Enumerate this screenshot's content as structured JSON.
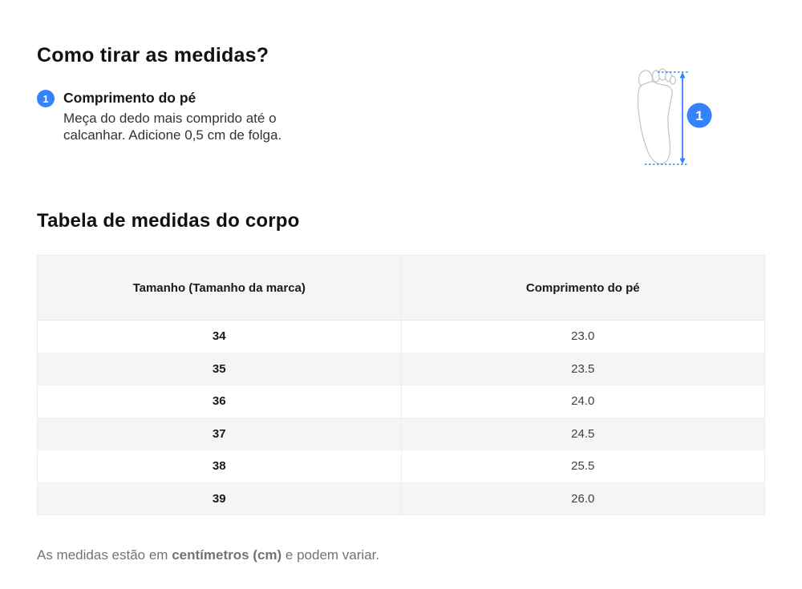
{
  "page": {
    "title": "Como tirar as medidas?",
    "section_title": "Tabela de medidas do corpo",
    "footnote": {
      "prefix": "As medidas estão em ",
      "bold": "centímetros (cm)",
      "suffix": " e podem variar."
    }
  },
  "measurement": {
    "number": "1",
    "label": "Comprimento do pé",
    "description": "Meça do dedo mais comprido até o calcanhar. Adicione 0,5 cm de folga.",
    "diagram_number": "1"
  },
  "table": {
    "headers": [
      "Tamanho (Tamanho da marca)",
      "Comprimento do pé"
    ],
    "rows": [
      [
        "34",
        "23.0"
      ],
      [
        "35",
        "23.5"
      ],
      [
        "36",
        "24.0"
      ],
      [
        "37",
        "24.5"
      ],
      [
        "38",
        "25.5"
      ],
      [
        "39",
        "26.0"
      ]
    ]
  },
  "colors": {
    "accent_blue": "#3483fa",
    "header_bg": "#f5f5f5",
    "stripe_bg": "#f5f5f5",
    "footnote_gray": "#737373"
  }
}
